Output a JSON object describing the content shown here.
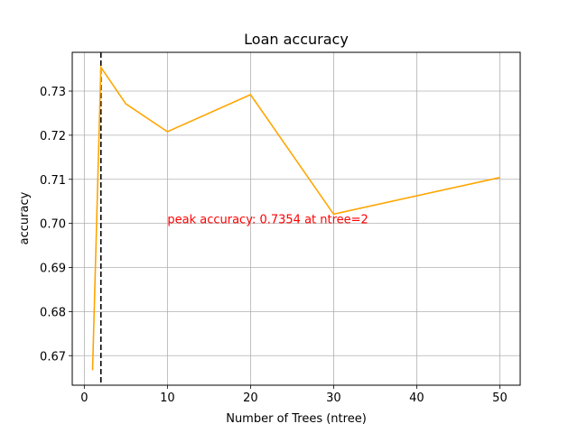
{
  "chart_data": {
    "type": "line",
    "title": "Loan accuracy",
    "xlabel": "Number of Trees (ntree)",
    "ylabel": "accuracy",
    "x": [
      1,
      2,
      5,
      10,
      20,
      30,
      50
    ],
    "series": [
      {
        "values": [
          0.6667,
          0.7354,
          0.7271,
          0.7208,
          0.7292,
          0.7021,
          0.7104
        ],
        "color": "#ffa500"
      }
    ],
    "xlim": [
      -1.45,
      52.45
    ],
    "ylim": [
      0.6633,
      0.7388
    ],
    "xticks": [
      0,
      10,
      20,
      30,
      40,
      50
    ],
    "xtick_labels": [
      "0",
      "10",
      "20",
      "30",
      "40",
      "50"
    ],
    "yticks": [
      0.67,
      0.68,
      0.69,
      0.7,
      0.71,
      0.72,
      0.73
    ],
    "ytick_labels": [
      "0.67",
      "0.68",
      "0.69",
      "0.70",
      "0.71",
      "0.72",
      "0.73"
    ],
    "grid": true,
    "vline": {
      "x": 2,
      "style": "dashed",
      "color": "#000000"
    },
    "annotation": {
      "text": "peak accuracy: 0.7354 at ntree=2",
      "x": 10,
      "y": 0.7,
      "color": "#ff0000"
    }
  }
}
